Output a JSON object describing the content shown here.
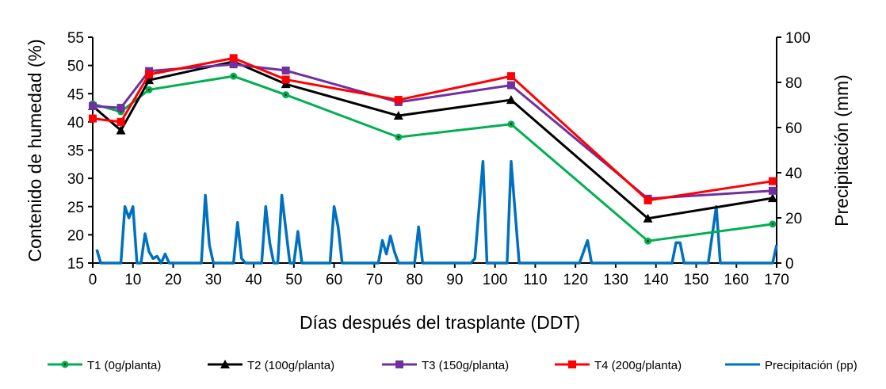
{
  "chart_data": {
    "type": "line",
    "title": "",
    "xlabel": "Días después del trasplante (DDT)",
    "ylabel": "Contenido de humedad (%)",
    "y2label": "Precipitación (mm)",
    "xlim": [
      0,
      170
    ],
    "ylim": [
      15,
      55
    ],
    "y2lim": [
      0,
      100
    ],
    "xticks": [
      0,
      10,
      20,
      30,
      40,
      50,
      60,
      70,
      80,
      90,
      100,
      110,
      120,
      130,
      140,
      150,
      160,
      170
    ],
    "yticks": [
      15,
      20,
      25,
      30,
      35,
      40,
      45,
      50,
      55
    ],
    "y2ticks": [
      0,
      20,
      40,
      60,
      80,
      100
    ],
    "grid": false,
    "legend_position": "bottom",
    "x": [
      0,
      7,
      14,
      35,
      48,
      76,
      104,
      138,
      169
    ],
    "series": [
      {
        "name": "T1 (0g/planta)",
        "color": "#00b050",
        "marker": "circle",
        "values": [
          43.2,
          41.8,
          45.7,
          48.1,
          44.8,
          37.3,
          39.6,
          18.9,
          21.9
        ]
      },
      {
        "name": "T2 (100g/planta)",
        "color": "#000000",
        "marker": "triangle",
        "values": [
          42.8,
          38.5,
          47.4,
          50.7,
          46.7,
          41.1,
          43.9,
          22.9,
          26.5
        ]
      },
      {
        "name": "T3 (150g/planta)",
        "color": "#7030a0",
        "marker": "square",
        "values": [
          42.8,
          42.5,
          49.0,
          50.2,
          49.1,
          43.5,
          46.5,
          26.4,
          27.8
        ]
      },
      {
        "name": "T4 (200g/planta)",
        "color": "#ff0000",
        "marker": "square",
        "values": [
          40.6,
          40.0,
          48.4,
          51.3,
          47.5,
          43.9,
          48.1,
          26.1,
          29.5
        ]
      }
    ],
    "precipitation": {
      "name": "Precipitación (pp)",
      "color": "#0070c0",
      "axis": "right",
      "x": [
        1,
        2,
        7,
        8,
        9,
        10,
        11,
        12,
        13,
        14,
        15,
        16,
        17,
        18,
        19,
        27,
        28,
        29,
        30,
        35,
        36,
        37,
        38,
        42,
        43,
        44,
        45,
        46,
        47,
        48,
        49,
        50,
        51,
        52,
        59,
        60,
        61,
        62,
        71,
        72,
        73,
        74,
        75,
        76,
        80,
        81,
        82,
        94,
        95,
        97,
        98,
        103,
        104,
        106,
        121,
        123,
        124,
        144,
        145,
        146,
        147,
        153,
        155,
        156,
        169,
        170
      ],
      "values": [
        6,
        0,
        0,
        25,
        20,
        25,
        0,
        0,
        13,
        5,
        2,
        3,
        0,
        4,
        0,
        0,
        30,
        8,
        0,
        0,
        18,
        2,
        0,
        0,
        25,
        9,
        0,
        0,
        30,
        15,
        0,
        0,
        14,
        0,
        0,
        25,
        16,
        0,
        0,
        10,
        4,
        12,
        5,
        0,
        0,
        16,
        0,
        0,
        2,
        45,
        0,
        0,
        45,
        0,
        0,
        10,
        0,
        0,
        9,
        9,
        0,
        0,
        25,
        0,
        0,
        8
      ]
    }
  }
}
